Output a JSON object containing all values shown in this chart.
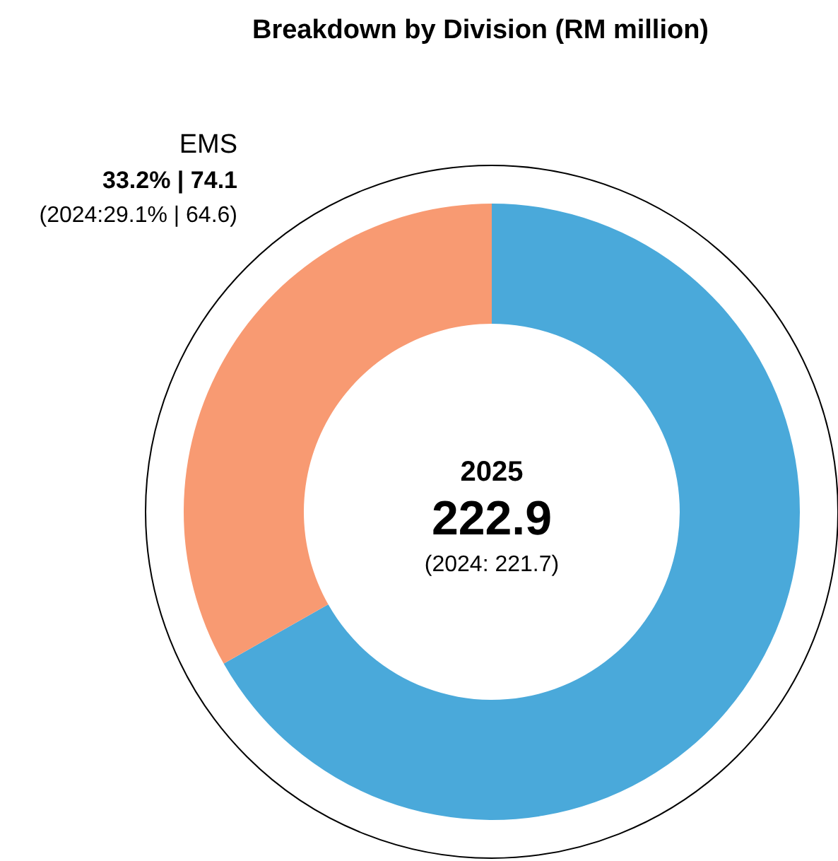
{
  "chart_data": {
    "type": "donut",
    "title": "Breakdown by Division (RM million)",
    "categories": [
      null,
      "EMS"
    ],
    "values": [
      66.8,
      33.2
    ],
    "colors": [
      "#4aa9da",
      "#f89a72"
    ],
    "annotations": [
      "2025",
      "222.9",
      "(2024: 221.7)",
      "33.2% | 74.1",
      "(2024:29.1% | 64.6)"
    ]
  }
}
